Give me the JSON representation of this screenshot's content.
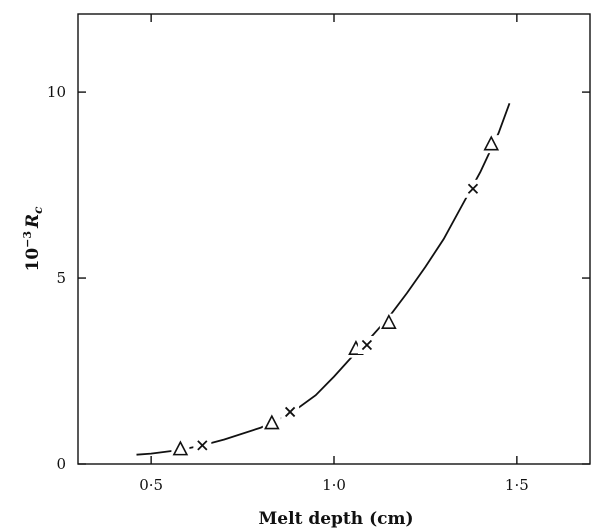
{
  "chart_data": {
    "type": "scatter",
    "xlabel": "Melt depth (cm)",
    "ylabel_prefix": "10",
    "ylabel_exp": "−3",
    "ylabel_sym": "R",
    "ylabel_sub": "c",
    "xlim": [
      0.3,
      1.7
    ],
    "ylim": [
      0,
      12.1
    ],
    "x_ticks": [
      {
        "value": 0.5,
        "label": "0·5"
      },
      {
        "value": 1.0,
        "label": "1·0"
      },
      {
        "value": 1.5,
        "label": "1·5"
      }
    ],
    "y_ticks": [
      {
        "value": 0,
        "label": "0"
      },
      {
        "value": 5,
        "label": "5"
      },
      {
        "value": 10,
        "label": "10"
      }
    ],
    "grid": false,
    "series": [
      {
        "marker": "triangle",
        "points": [
          {
            "x": 0.58,
            "y": 0.4
          },
          {
            "x": 0.83,
            "y": 1.1
          },
          {
            "x": 1.06,
            "y": 3.1
          },
          {
            "x": 1.15,
            "y": 3.8
          },
          {
            "x": 1.43,
            "y": 8.6
          }
        ]
      },
      {
        "marker": "cross",
        "points": [
          {
            "x": 0.64,
            "y": 0.5
          },
          {
            "x": 0.88,
            "y": 1.4
          },
          {
            "x": 1.09,
            "y": 3.2
          },
          {
            "x": 1.38,
            "y": 7.4
          }
        ]
      }
    ],
    "fit_curve": {
      "style": "solid",
      "points": [
        {
          "x": 0.46,
          "y": 0.25
        },
        {
          "x": 0.5,
          "y": 0.28
        },
        {
          "x": 0.58,
          "y": 0.38
        },
        {
          "x": 0.64,
          "y": 0.5
        },
        {
          "x": 0.7,
          "y": 0.66
        },
        {
          "x": 0.8,
          "y": 0.98
        },
        {
          "x": 0.88,
          "y": 1.35
        },
        {
          "x": 0.95,
          "y": 1.85
        },
        {
          "x": 1.0,
          "y": 2.35
        },
        {
          "x": 1.06,
          "y": 3.0
        },
        {
          "x": 1.1,
          "y": 3.4
        },
        {
          "x": 1.15,
          "y": 3.95
        },
        {
          "x": 1.2,
          "y": 4.6
        },
        {
          "x": 1.25,
          "y": 5.3
        },
        {
          "x": 1.3,
          "y": 6.05
        },
        {
          "x": 1.35,
          "y": 6.95
        },
        {
          "x": 1.4,
          "y": 7.85
        },
        {
          "x": 1.45,
          "y": 8.9
        },
        {
          "x": 1.48,
          "y": 9.7
        }
      ]
    }
  }
}
